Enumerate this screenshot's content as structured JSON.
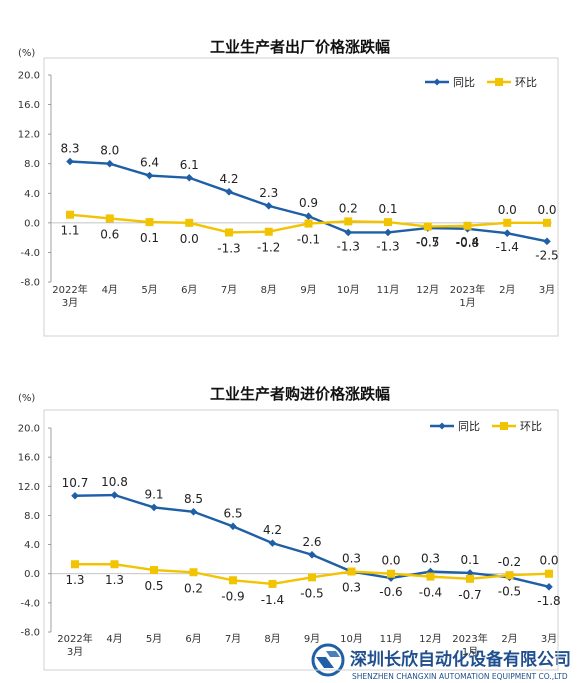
{
  "chart_data": [
    {
      "type": "line",
      "title": "工业生产者出厂价格涨跌幅",
      "ylabel": "(%)",
      "ylim": [
        -8.0,
        20.0
      ],
      "yticks": [
        "20.0",
        "16.0",
        "12.0",
        "8.0",
        "4.0",
        "0.0",
        "-4.0",
        "-8.0"
      ],
      "categories": [
        [
          "2022年",
          "3月"
        ],
        [
          "4月"
        ],
        [
          "5月"
        ],
        [
          "6月"
        ],
        [
          "7月"
        ],
        [
          "8月"
        ],
        [
          "9月"
        ],
        [
          "10月"
        ],
        [
          "11月"
        ],
        [
          "12月"
        ],
        [
          "2023年",
          "1月"
        ],
        [
          "2月"
        ],
        [
          "3月"
        ]
      ],
      "series": [
        {
          "name": "同比",
          "color": "#1f5fa6",
          "values": [
            8.3,
            8.0,
            6.4,
            6.1,
            4.2,
            2.3,
            0.9,
            -1.3,
            -1.3,
            -0.7,
            -0.8,
            -1.4,
            -2.5
          ]
        },
        {
          "name": "环比",
          "color": "#f2c300",
          "values": [
            1.1,
            0.6,
            0.1,
            0.0,
            -1.3,
            -1.2,
            -0.1,
            0.2,
            0.1,
            -0.5,
            -0.4,
            0.0,
            0.0
          ]
        }
      ],
      "grid": false,
      "legend_position": "top-right"
    },
    {
      "type": "line",
      "title": "工业生产者购进价格涨跌幅",
      "ylabel": "(%)",
      "ylim": [
        -8.0,
        20.0
      ],
      "yticks": [
        "20.0",
        "16.0",
        "12.0",
        "8.0",
        "4.0",
        "0.0",
        "-4.0",
        "-8.0"
      ],
      "categories": [
        [
          "2022年",
          "3月"
        ],
        [
          "4月"
        ],
        [
          "5月"
        ],
        [
          "6月"
        ],
        [
          "7月"
        ],
        [
          "8月"
        ],
        [
          "9月"
        ],
        [
          "10月"
        ],
        [
          "11月"
        ],
        [
          "12月"
        ],
        [
          "2023年",
          "1月"
        ],
        [
          "2月"
        ],
        [
          "3月"
        ]
      ],
      "series": [
        {
          "name": "同比",
          "color": "#1f5fa6",
          "values": [
            10.7,
            10.8,
            9.1,
            8.5,
            6.5,
            4.2,
            2.6,
            0.3,
            -0.6,
            0.3,
            0.1,
            -0.5,
            -1.8
          ]
        },
        {
          "name": "环比",
          "color": "#f2c300",
          "values": [
            1.3,
            1.3,
            0.5,
            0.2,
            -0.9,
            -1.4,
            -0.5,
            0.3,
            0.0,
            -0.4,
            -0.7,
            -0.2,
            0.0
          ]
        }
      ],
      "grid": false,
      "legend_position": "top-right"
    }
  ],
  "watermark": {
    "company": "深圳长欣自动化设备有限公司",
    "company_en": "SHENZHEN CHANGXIN AUTOMATION EQUIPMENT CO.,LTD"
  }
}
